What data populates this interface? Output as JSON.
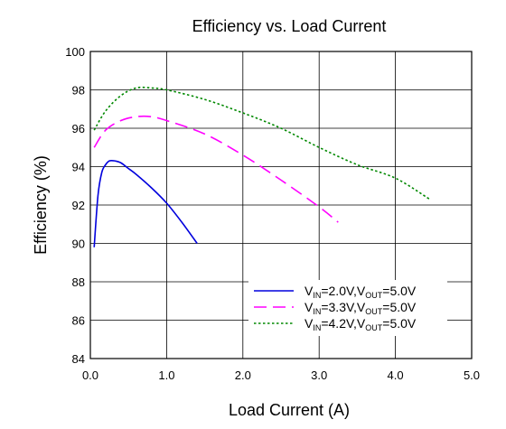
{
  "chart_data": {
    "type": "line",
    "title": "Efficiency vs. Load Current",
    "xlabel": "Load Current  (A)",
    "ylabel": "Efficiency (%)",
    "xlim": [
      0.0,
      5.0
    ],
    "ylim": [
      84,
      100
    ],
    "x_ticks": [
      "0.0",
      "1.0",
      "2.0",
      "3.0",
      "4.0",
      "5.0"
    ],
    "y_ticks": [
      "84",
      "86",
      "88",
      "90",
      "92",
      "94",
      "96",
      "98",
      "100"
    ],
    "grid": "vertical and horizontal",
    "legend_position": "bottom-right",
    "series": [
      {
        "name": "VIN=2.0V,VOUT=5.0V",
        "legend": {
          "parts": [
            {
              "text": "V",
              "sub": false
            },
            {
              "text": "IN",
              "sub": true
            },
            {
              "text": "=2.0V,V",
              "sub": false
            },
            {
              "text": "OUT",
              "sub": true
            },
            {
              "text": "=5.0V",
              "sub": false
            }
          ]
        },
        "color": "#0000dd",
        "style": "solid",
        "x": [
          0.05,
          0.1,
          0.15,
          0.2,
          0.25,
          0.32,
          0.4,
          0.5,
          0.6,
          0.8,
          1.0,
          1.2,
          1.4
        ],
        "y": [
          89.8,
          92.5,
          93.7,
          94.1,
          94.3,
          94.3,
          94.2,
          93.9,
          93.6,
          92.9,
          92.1,
          91.1,
          90.0
        ]
      },
      {
        "name": "VIN=3.3V,VOUT=5.0V",
        "legend": {
          "parts": [
            {
              "text": "V",
              "sub": false
            },
            {
              "text": "IN",
              "sub": true
            },
            {
              "text": "=3.3V,V",
              "sub": false
            },
            {
              "text": "OUT",
              "sub": true
            },
            {
              "text": "=5.0V",
              "sub": false
            }
          ]
        },
        "color": "#ff00ff",
        "style": "dashed",
        "x": [
          0.05,
          0.2,
          0.4,
          0.6,
          0.8,
          1.0,
          1.5,
          2.0,
          2.5,
          3.0,
          3.25
        ],
        "y": [
          95.0,
          95.9,
          96.4,
          96.6,
          96.6,
          96.4,
          95.7,
          94.6,
          93.3,
          91.9,
          91.1
        ]
      },
      {
        "name": "VIN=4.2V,VOUT=5.0V",
        "legend": {
          "parts": [
            {
              "text": "V",
              "sub": false
            },
            {
              "text": "IN",
              "sub": true
            },
            {
              "text": "=4.2V,V",
              "sub": false
            },
            {
              "text": "OUT",
              "sub": true
            },
            {
              "text": "=5.0V",
              "sub": false
            }
          ]
        },
        "color": "#008800",
        "style": "dotted",
        "x": [
          0.05,
          0.2,
          0.4,
          0.6,
          0.8,
          1.0,
          1.5,
          2.0,
          2.5,
          3.0,
          3.5,
          4.0,
          4.45
        ],
        "y": [
          95.9,
          96.9,
          97.7,
          98.1,
          98.1,
          98.0,
          97.5,
          96.8,
          96.0,
          95.0,
          94.1,
          93.4,
          92.3
        ]
      }
    ]
  }
}
